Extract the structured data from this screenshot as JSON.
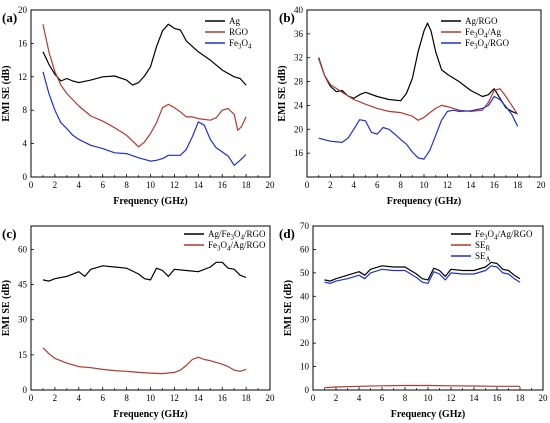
{
  "chart_data": [
    {
      "panel": "(a)",
      "type": "line",
      "xlabel": "Frequency (GHz)",
      "ylabel": "EMI SE (dB)",
      "xlim": [
        0,
        20
      ],
      "ylim": [
        0,
        20
      ],
      "xticks": [
        "0",
        "2",
        "4",
        "6",
        "8",
        "10",
        "12",
        "14",
        "16",
        "18",
        "20"
      ],
      "yticks": [
        "0",
        "4",
        "8",
        "12",
        "16",
        "20"
      ],
      "legend_position": "top-right",
      "series": [
        {
          "name": "Ag",
          "color": "#000000",
          "x": [
            1,
            1.5,
            2,
            2.5,
            3,
            3.5,
            4,
            5,
            6,
            7,
            8,
            8.5,
            9,
            9.5,
            10,
            10.5,
            11,
            11.5,
            12,
            12.5,
            13,
            14,
            15,
            16,
            17,
            17.5,
            18
          ],
          "y": [
            15,
            13.5,
            12.3,
            11.5,
            11.8,
            11.5,
            11.3,
            11.6,
            12.0,
            12.1,
            11.6,
            11.0,
            11.3,
            12.1,
            13.2,
            15.6,
            17.5,
            18.3,
            17.8,
            17.6,
            16.3,
            15.0,
            14.0,
            12.8,
            12.0,
            11.8,
            11.0
          ]
        },
        {
          "name": "RGO",
          "color": "#b03a2e",
          "x": [
            1,
            1.5,
            2,
            2.5,
            3,
            4,
            5,
            6,
            7,
            8,
            8.5,
            9,
            9.5,
            10,
            10.5,
            11,
            11.5,
            12,
            12.5,
            13,
            13.5,
            14,
            15,
            15.5,
            16,
            16.5,
            17,
            17.3,
            17.6,
            18
          ],
          "y": [
            18.3,
            15.0,
            12.6,
            11.0,
            10.0,
            8.5,
            7.3,
            6.7,
            5.9,
            5.0,
            4.3,
            3.6,
            4.2,
            5.2,
            6.5,
            8.3,
            8.7,
            8.3,
            7.8,
            7.2,
            7.2,
            7.0,
            6.8,
            7.1,
            8.0,
            8.2,
            7.5,
            5.6,
            6.0,
            7.2
          ]
        },
        {
          "name": "Fe3O4",
          "color": "#1f2fd4",
          "x": [
            1,
            1.5,
            2,
            2.5,
            3,
            3.5,
            4,
            5,
            6,
            7,
            8,
            9,
            10,
            10.5,
            11,
            11.5,
            12,
            12.5,
            13,
            13.5,
            14,
            14.5,
            15,
            15.5,
            16,
            16.5,
            17,
            17.5,
            18
          ],
          "y": [
            12.6,
            10.0,
            8.0,
            6.5,
            5.8,
            5.0,
            4.5,
            3.8,
            3.4,
            2.9,
            2.8,
            2.3,
            1.9,
            2.0,
            2.2,
            2.6,
            2.6,
            2.6,
            3.3,
            4.8,
            6.6,
            6.2,
            4.5,
            3.5,
            3.0,
            2.5,
            1.4,
            2.0,
            2.7
          ]
        }
      ]
    },
    {
      "panel": "(b)",
      "type": "line",
      "xlabel": "Frequency (GHz)",
      "ylabel": "EMI SE (dB)",
      "xlim": [
        0,
        20
      ],
      "ylim": [
        12,
        40
      ],
      "xticks": [
        "0",
        "2",
        "4",
        "6",
        "8",
        "10",
        "12",
        "14",
        "16",
        "18",
        "20"
      ],
      "yticks": [
        "16",
        "20",
        "24",
        "28",
        "32",
        "36",
        "40"
      ],
      "legend_position": "top-right",
      "series": [
        {
          "name": "Ag/RGO",
          "color": "#000000",
          "x": [
            1,
            1.5,
            2,
            2.5,
            3,
            3.5,
            4,
            4.5,
            5,
            6,
            7,
            8,
            8.5,
            9,
            9.5,
            10,
            10.3,
            10.6,
            11,
            11.5,
            12,
            12.5,
            13,
            14,
            15,
            15.5,
            16,
            16.5,
            17,
            17.5,
            18
          ],
          "y": [
            32,
            29.0,
            27.2,
            26.3,
            26.5,
            25.6,
            25.2,
            25.8,
            26.2,
            25.5,
            25.0,
            24.8,
            26.0,
            28.5,
            33.0,
            36.5,
            37.8,
            36.5,
            33.0,
            30.0,
            29.2,
            28.6,
            28.0,
            26.5,
            25.5,
            25.8,
            26.8,
            25.2,
            23.6,
            23.0,
            22.6
          ]
        },
        {
          "name": "Fe3O4/Ag",
          "color": "#b03a2e",
          "x": [
            1,
            1.5,
            2,
            3,
            4,
            5,
            6,
            7,
            8,
            9,
            9.5,
            10,
            10.5,
            11,
            11.5,
            12,
            13,
            14,
            15,
            15.5,
            16,
            16.5,
            17,
            17.5,
            18
          ],
          "y": [
            31.8,
            29.0,
            27.5,
            26.2,
            25.0,
            24.2,
            23.5,
            23.0,
            22.8,
            22.2,
            21.5,
            22.0,
            22.8,
            23.5,
            24.0,
            23.8,
            23.2,
            23.0,
            23.2,
            24.5,
            26.5,
            26.8,
            25.5,
            24.0,
            22.5
          ]
        },
        {
          "name": "Fe3O4/RGO",
          "color": "#1f2fd4",
          "x": [
            1,
            2,
            3,
            3.5,
            4,
            4.5,
            5,
            5.5,
            6,
            6.5,
            7,
            7.5,
            8,
            8.5,
            9,
            9.5,
            10,
            10.5,
            11,
            11.5,
            12,
            12.5,
            13,
            14,
            15,
            15.5,
            16,
            16.5,
            17,
            17.5,
            18
          ],
          "y": [
            18.5,
            18.0,
            17.8,
            18.5,
            20.0,
            21.6,
            21.4,
            19.5,
            19.2,
            20.3,
            20.0,
            19.2,
            18.3,
            17.5,
            16.2,
            15.2,
            15.0,
            16.5,
            19.0,
            21.5,
            23.0,
            23.2,
            23.0,
            23.1,
            23.5,
            24.0,
            25.5,
            25.0,
            23.8,
            22.5,
            20.5
          ]
        }
      ]
    },
    {
      "panel": "(c)",
      "type": "line",
      "xlabel": "Frequency (GHz)",
      "ylabel": "EMI SE (dB)",
      "xlim": [
        0,
        20
      ],
      "ylim": [
        0,
        70
      ],
      "xticks": [
        "0",
        "2",
        "4",
        "6",
        "8",
        "10",
        "12",
        "14",
        "16",
        "18",
        "20"
      ],
      "yticks": [
        "0",
        "15",
        "30",
        "45",
        "60"
      ],
      "legend_position": "top-right",
      "series": [
        {
          "name": "Ag/Fe3O4/RGO",
          "color": "#000000",
          "x": [
            1,
            1.5,
            2,
            3,
            4,
            4.5,
            5,
            6,
            7,
            8,
            9,
            9.5,
            10,
            10.5,
            11,
            11.5,
            12,
            13,
            14,
            15,
            15.5,
            16,
            16.5,
            17,
            17.5,
            18
          ],
          "y": [
            47,
            46.5,
            47.5,
            48.5,
            50.5,
            48.5,
            51.5,
            53.0,
            52.5,
            52.0,
            49.5,
            47.5,
            47.0,
            52.0,
            51.0,
            48.5,
            51.5,
            51.0,
            50.5,
            52.5,
            54.5,
            54.5,
            52.0,
            51.5,
            49.0,
            48.0
          ]
        },
        {
          "name": "Fe3O4/Ag/RGO",
          "color": "#b03a2e",
          "x": [
            1,
            1.5,
            2,
            3,
            4,
            5,
            6,
            7,
            8,
            9,
            10,
            11,
            12,
            12.5,
            13,
            13.5,
            14,
            14.5,
            15,
            16,
            16.5,
            17,
            17.5,
            18
          ],
          "y": [
            18.0,
            15.5,
            13.5,
            11.5,
            10.0,
            9.5,
            8.8,
            8.3,
            8.0,
            7.5,
            7.2,
            7.0,
            7.5,
            8.5,
            10.5,
            13.0,
            14.0,
            13.0,
            12.5,
            11.0,
            10.0,
            8.5,
            8.0,
            8.8
          ]
        }
      ]
    },
    {
      "panel": "(d)",
      "type": "line",
      "xlabel": "Frequency (GHz)",
      "ylabel": "EMI SE (dB)",
      "xlim": [
        0,
        20
      ],
      "ylim": [
        0,
        70
      ],
      "xticks": [
        "0",
        "2",
        "4",
        "6",
        "8",
        "10",
        "12",
        "14",
        "16",
        "18",
        "20"
      ],
      "yticks": [
        "0",
        "10",
        "20",
        "30",
        "40",
        "50",
        "60",
        "70"
      ],
      "legend_position": "top-right",
      "series": [
        {
          "name": "Fe3O4/Ag/RGO",
          "color": "#000000",
          "x": [
            1,
            1.5,
            2,
            3,
            4,
            4.5,
            5,
            6,
            7,
            8,
            9,
            9.5,
            10,
            10.5,
            11,
            11.5,
            12,
            13,
            14,
            15,
            15.5,
            16,
            16.5,
            17,
            17.5,
            18
          ],
          "y": [
            47,
            46.5,
            47.5,
            49.0,
            50.5,
            49.0,
            51.5,
            53.0,
            52.5,
            52.5,
            49.5,
            47.5,
            47.0,
            52.0,
            51.0,
            48.5,
            51.5,
            51.0,
            51.0,
            52.5,
            54.5,
            54.0,
            51.5,
            51.0,
            49.0,
            47.5
          ]
        },
        {
          "name": "SER",
          "color": "#b03a2e",
          "x": [
            1,
            2,
            4,
            6,
            8,
            10,
            12,
            14,
            16,
            18
          ],
          "y": [
            1.0,
            1.3,
            1.6,
            1.8,
            1.9,
            1.9,
            1.8,
            1.7,
            1.6,
            1.6
          ]
        },
        {
          "name": "SEA",
          "color": "#1f2fd4",
          "x": [
            1,
            1.5,
            2,
            3,
            4,
            4.5,
            5,
            6,
            7,
            8,
            9,
            9.5,
            10,
            10.5,
            11,
            11.5,
            12,
            13,
            14,
            15,
            15.5,
            16,
            16.5,
            17,
            17.5,
            18
          ],
          "y": [
            46,
            45.5,
            46.5,
            47.5,
            49.0,
            47.5,
            50.0,
            51.5,
            51.0,
            51.0,
            48.0,
            46.0,
            45.5,
            50.5,
            49.5,
            47.0,
            50.0,
            49.5,
            49.5,
            51.0,
            53.0,
            52.5,
            50.0,
            49.5,
            47.5,
            46.0
          ]
        }
      ]
    }
  ]
}
